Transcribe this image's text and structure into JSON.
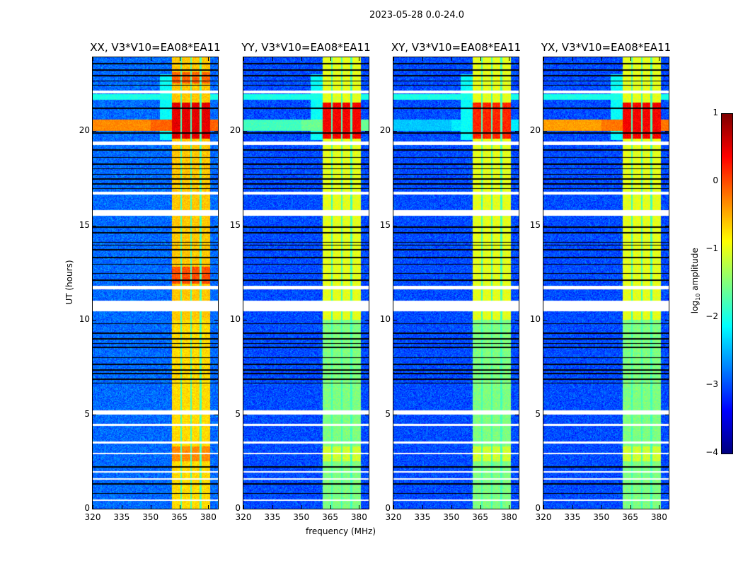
{
  "figure": {
    "suptitle": "2023-05-28 0.0-24.0"
  },
  "chart_data": {
    "type": "heatmap",
    "xlabel": "frequency (MHz)",
    "ylabel": "UT (hours)",
    "xlim": [
      320,
      385
    ],
    "ylim": [
      0,
      23.9
    ],
    "xticks": [
      "320",
      "335",
      "350",
      "365",
      "380"
    ],
    "xtick_values": [
      320,
      335,
      350,
      365,
      380
    ],
    "yticks": [
      "0",
      "5",
      "10",
      "15",
      "20"
    ],
    "ytick_values": [
      0,
      5,
      10,
      15,
      20
    ],
    "colormap": "jet",
    "colorbar": {
      "label_prefix": "log",
      "label_sub": "10",
      "label_suffix": " amplitude",
      "range": [
        -4,
        1
      ],
      "ticks": [
        "−4",
        "−3",
        "−2",
        "−1",
        "0",
        "1"
      ],
      "tick_values": [
        -4,
        -3,
        -2,
        -1,
        0,
        1
      ]
    },
    "features": {
      "background_level": -3.0,
      "rfi_band_mhz": [
        361,
        381
      ],
      "channel_gaps_mhz": [
        366,
        371,
        376
      ],
      "flagged_hours": [
        [
          22.0,
          22.15
        ],
        [
          19.25,
          19.45
        ],
        [
          16.65,
          16.8
        ],
        [
          15.5,
          15.8
        ],
        [
          11.6,
          11.8
        ],
        [
          10.45,
          11.0
        ],
        [
          5.0,
          5.2
        ],
        [
          4.4,
          4.5
        ],
        [
          3.45,
          3.55
        ],
        [
          2.9,
          2.97
        ],
        [
          1.9,
          1.97
        ],
        [
          1.55,
          1.62
        ],
        [
          0.42,
          0.48
        ]
      ],
      "dark_lines_hours": [
        23.57,
        23.22,
        22.92,
        22.65,
        22.42,
        21.2,
        19.9,
        19.0,
        18.6,
        18.25,
        18.0,
        17.7,
        17.45,
        17.2,
        16.95,
        14.9,
        14.6,
        14.1,
        13.95,
        13.7,
        13.3,
        12.95,
        12.45,
        12.1,
        9.8,
        9.3,
        9.0,
        8.75,
        8.55,
        8.0,
        7.65,
        7.35,
        7.15,
        6.85,
        6.65,
        2.2,
        1.3,
        0.8
      ]
    },
    "panels": [
      {
        "title": "XX, V3*V10=EA08*EA11",
        "band_level": -0.6,
        "early_band_level": -0.7,
        "burst_level": 0.5,
        "stripe_level": -0.3
      },
      {
        "title": "YY, V3*V10=EA08*EA11",
        "band_level": -1.0,
        "early_band_level": -1.5,
        "burst_level": 0.4,
        "stripe_level": -1.8
      },
      {
        "title": "XY, V3*V10=EA08*EA11",
        "band_level": -1.0,
        "early_band_level": -1.5,
        "burst_level": 0.2,
        "stripe_level": -2.4
      },
      {
        "title": "YX, V3*V10=EA08*EA11",
        "band_level": -1.0,
        "early_band_level": -1.5,
        "burst_level": 0.4,
        "stripe_level": -0.4
      }
    ]
  }
}
